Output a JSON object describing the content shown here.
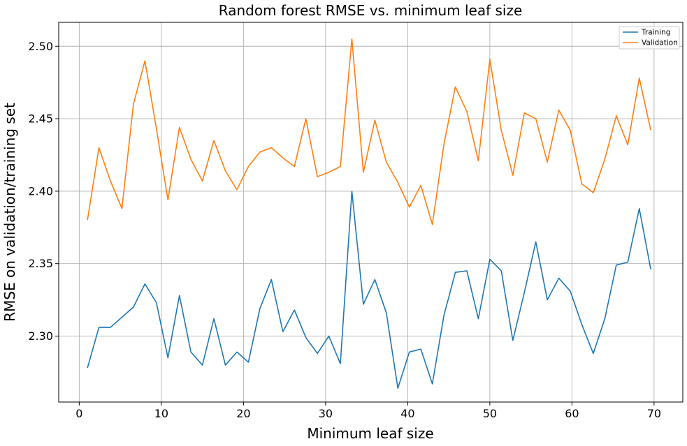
{
  "chart_data": {
    "type": "line",
    "title": "Random forest RMSE vs. minimum leaf size",
    "xlabel": "Minimum leaf size",
    "ylabel": "RMSE on validation/training set",
    "xlim": [
      -2.5,
      73.5
    ],
    "ylim": [
      2.2545,
      2.5165
    ],
    "xticks": [
      0,
      10,
      20,
      30,
      40,
      50,
      60,
      70
    ],
    "xtick_labels": [
      "0",
      "10",
      "20",
      "30",
      "40",
      "50",
      "60",
      "70"
    ],
    "yticks": [
      2.3,
      2.35,
      2.4,
      2.45,
      2.5
    ],
    "ytick_labels": [
      "2.30",
      "2.35",
      "2.40",
      "2.45",
      "2.50"
    ],
    "grid": true,
    "legend_position": "top-right",
    "x": [
      1.0,
      2.4,
      3.8,
      5.2,
      6.6,
      8.0,
      9.4,
      10.8,
      12.2,
      13.6,
      15.0,
      16.4,
      17.8,
      19.2,
      20.6,
      22.0,
      23.4,
      24.8,
      26.2,
      27.6,
      29.0,
      30.4,
      31.8,
      33.2,
      34.6,
      36.0,
      37.4,
      38.8,
      40.2,
      41.6,
      43.0,
      44.4,
      45.8,
      47.2,
      48.6,
      50.0,
      51.4,
      52.8,
      54.2,
      55.6,
      57.0,
      58.4,
      59.8,
      61.2,
      62.6,
      64.0,
      65.4,
      66.8,
      68.2,
      69.6
    ],
    "series": [
      {
        "name": "Training",
        "color": "#1f77b4",
        "values": [
          2.278,
          2.306,
          2.306,
          2.313,
          2.32,
          2.336,
          2.323,
          2.285,
          2.328,
          2.289,
          2.28,
          2.312,
          2.28,
          2.289,
          2.282,
          2.319,
          2.339,
          2.303,
          2.318,
          2.299,
          2.288,
          2.3,
          2.281,
          2.4,
          2.322,
          2.339,
          2.316,
          2.264,
          2.289,
          2.291,
          2.267,
          2.314,
          2.344,
          2.345,
          2.312,
          2.353,
          2.345,
          2.297,
          2.33,
          2.365,
          2.325,
          2.34,
          2.331,
          2.308,
          2.288,
          2.312,
          2.349,
          2.351,
          2.388,
          2.346
        ]
      },
      {
        "name": "Validation",
        "color": "#ff7f0e",
        "values": [
          2.38,
          2.43,
          2.407,
          2.388,
          2.46,
          2.49,
          2.443,
          2.394,
          2.444,
          2.422,
          2.407,
          2.435,
          2.414,
          2.401,
          2.417,
          2.427,
          2.43,
          2.423,
          2.417,
          2.45,
          2.41,
          2.413,
          2.417,
          2.505,
          2.413,
          2.449,
          2.42,
          2.406,
          2.389,
          2.404,
          2.377,
          2.432,
          2.472,
          2.455,
          2.421,
          2.491,
          2.442,
          2.411,
          2.454,
          2.45,
          2.42,
          2.456,
          2.442,
          2.405,
          2.399,
          2.422,
          2.452,
          2.432,
          2.478,
          2.442
        ]
      }
    ]
  }
}
